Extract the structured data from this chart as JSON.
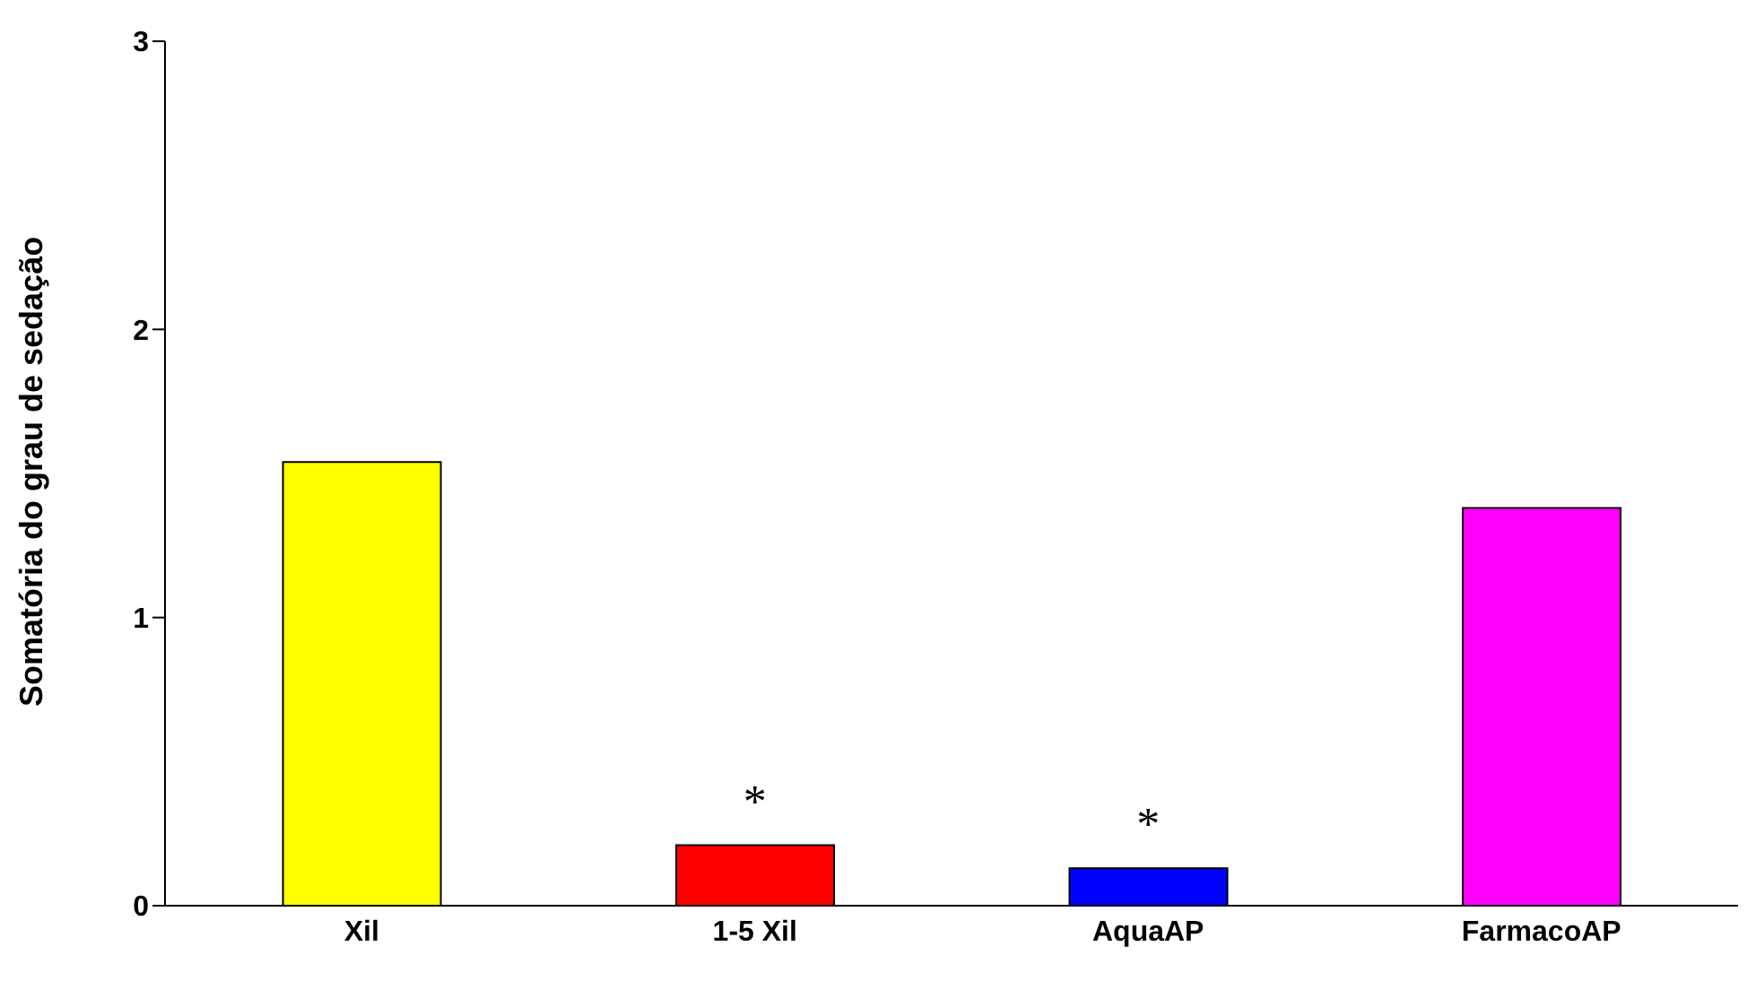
{
  "chart_data": {
    "type": "bar",
    "ylabel": "Somatória do grau de sedação",
    "categories": [
      "Xil",
      "1-5 Xil",
      "AquaAP",
      "FarmacoAP"
    ],
    "values": [
      1.54,
      0.21,
      0.13,
      1.38
    ],
    "colors": [
      "#ffff00",
      "#ff0000",
      "#0000ff",
      "#ff00ff"
    ],
    "ylim": [
      0,
      3
    ],
    "yticks": [
      0,
      1,
      2,
      3
    ],
    "grid": false,
    "legend": false,
    "annotations": [
      {
        "text": "*",
        "x": "1-5 Xil",
        "y": 0.21
      },
      {
        "text": "*",
        "x": "AquaAP",
        "y": 0.13
      }
    ]
  }
}
